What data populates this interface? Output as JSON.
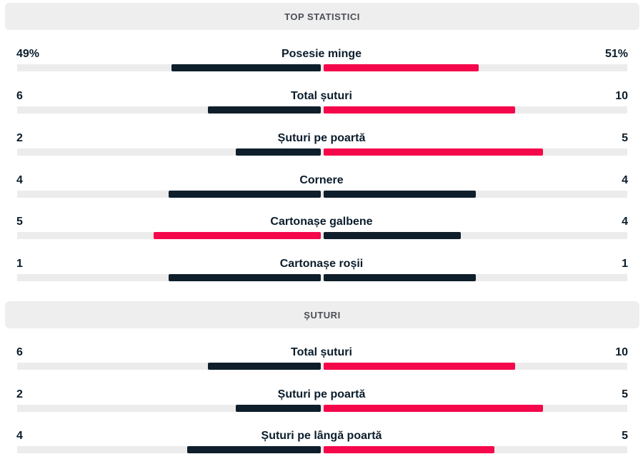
{
  "sections": [
    {
      "title": "TOP STATISTICI",
      "stats": [
        {
          "label": "Posesie minge",
          "home": "49%",
          "away": "51%",
          "home_fill": 0.49,
          "away_fill": 0.51,
          "home_color": "dark",
          "away_color": "red"
        },
        {
          "label": "Total șuturi",
          "home": "6",
          "away": "10",
          "home_fill": 0.37,
          "away_fill": 0.63,
          "home_color": "dark",
          "away_color": "red"
        },
        {
          "label": "Șuturi pe poartă",
          "home": "2",
          "away": "5",
          "home_fill": 0.28,
          "away_fill": 0.72,
          "home_color": "dark",
          "away_color": "red"
        },
        {
          "label": "Cornere",
          "home": "4",
          "away": "4",
          "home_fill": 0.5,
          "away_fill": 0.5,
          "home_color": "dark",
          "away_color": "dark"
        },
        {
          "label": "Cartonașe galbene",
          "home": "5",
          "away": "4",
          "home_fill": 0.55,
          "away_fill": 0.45,
          "home_color": "red",
          "away_color": "dark"
        },
        {
          "label": "Cartonașe roșii",
          "home": "1",
          "away": "1",
          "home_fill": 0.5,
          "away_fill": 0.5,
          "home_color": "dark",
          "away_color": "dark"
        }
      ]
    },
    {
      "title": "ȘUTURI",
      "stats": [
        {
          "label": "Total șuturi",
          "home": "6",
          "away": "10",
          "home_fill": 0.37,
          "away_fill": 0.63,
          "home_color": "dark",
          "away_color": "red"
        },
        {
          "label": "Șuturi pe poartă",
          "home": "2",
          "away": "5",
          "home_fill": 0.28,
          "away_fill": 0.72,
          "home_color": "dark",
          "away_color": "red"
        },
        {
          "label": "Șuturi pe lângă poartă",
          "home": "4",
          "away": "5",
          "home_fill": 0.44,
          "away_fill": 0.56,
          "home_color": "dark",
          "away_color": "red"
        }
      ]
    }
  ],
  "colors": {
    "dark": "#0e1f2b",
    "red": "#f5074b",
    "track": "#ececec"
  }
}
